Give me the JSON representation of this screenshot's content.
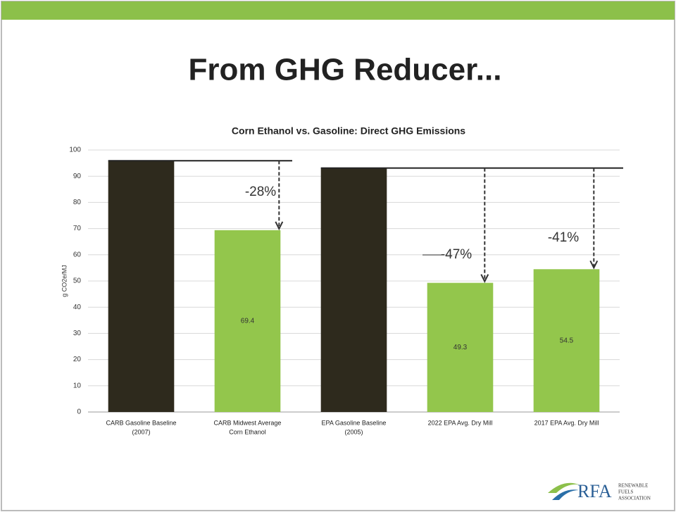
{
  "slide_title": "From GHG Reducer...",
  "chart_data": {
    "type": "bar",
    "title": "Corn Ethanol vs. Gasoline: Direct GHG Emissions",
    "ylabel": "g CO2e/MJ",
    "categories": [
      [
        "CARB Gasoline Baseline",
        "(2007)"
      ],
      [
        "CARB Midwest Average",
        "Corn Ethanol"
      ],
      [
        "EPA Gasoline Baseline",
        "(2005)"
      ],
      [
        "2022 EPA Avg. Dry Mill"
      ],
      [
        "2017 EPA Avg. Dry Mill"
      ]
    ],
    "values": [
      95.9,
      69.4,
      93.1,
      49.3,
      54.5
    ],
    "value_labels": [
      null,
      "69.4",
      null,
      "49.3",
      "54.5"
    ],
    "colors": [
      "#2e2a1d",
      "#93c64c",
      "#2e2a1d",
      "#93c64c",
      "#93c64c"
    ],
    "ylim": [
      0,
      100
    ],
    "yticks": [
      0,
      10,
      20,
      30,
      40,
      50,
      60,
      70,
      80,
      90,
      100
    ],
    "grid": true,
    "annotations": [
      "-28%",
      "-47%",
      "-41%"
    ]
  },
  "logo": {
    "mark": "RFA",
    "text": [
      "RENEWABLE",
      "FUELS",
      "ASSOCIATION"
    ]
  }
}
